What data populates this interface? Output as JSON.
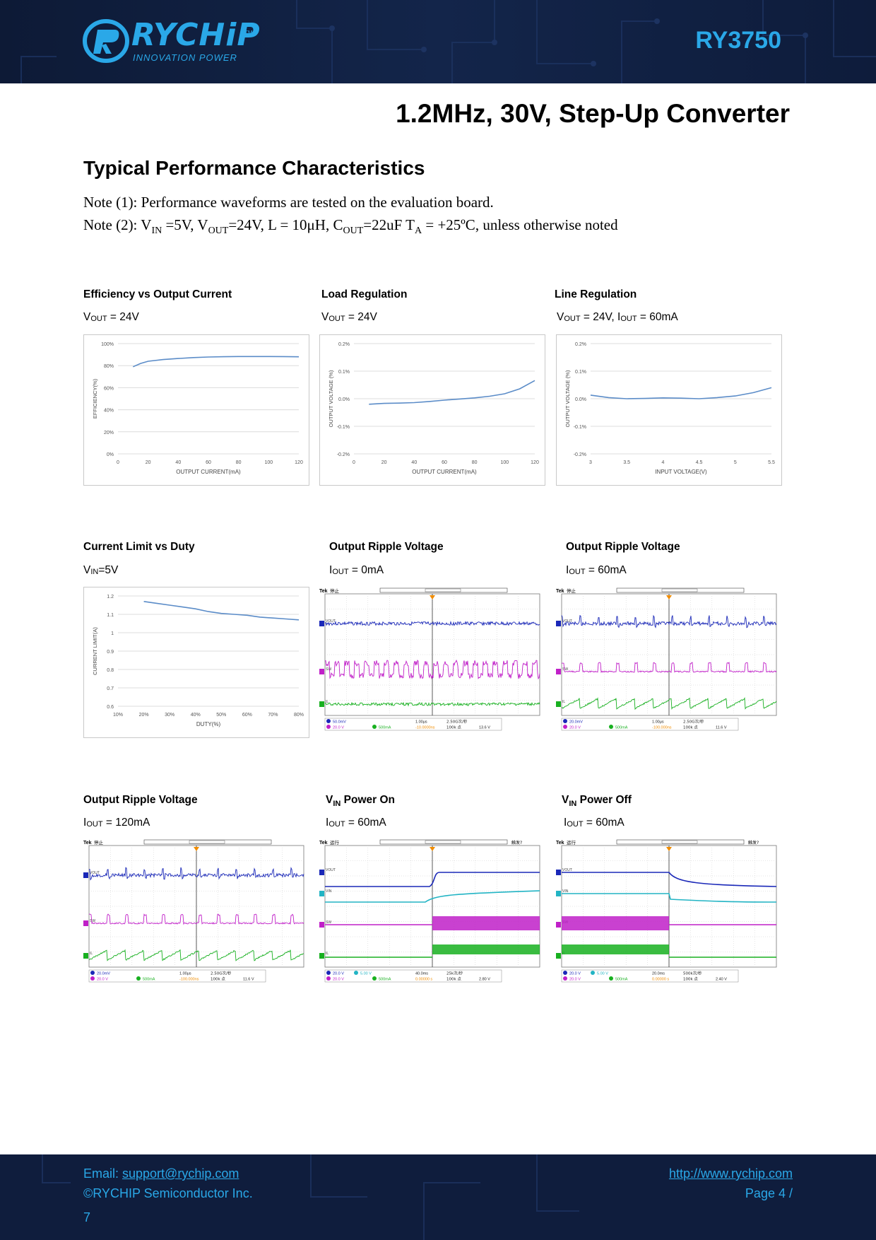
{
  "header": {
    "brand": "RYCHiP",
    "tagline": "INNOVATION POWER",
    "trademark": "TM",
    "part_number": "RY3750",
    "colors": {
      "accent": "#2aa8e8",
      "bar": "#0f1d3d"
    }
  },
  "doc_title": "1.2MHz, 30V, Step-Up Converter",
  "section_title": "Typical Performance Characteristics",
  "notes": {
    "note1": "Note (1): Performance waveforms are tested on the evaluation board.",
    "note2": {
      "prefix": "Note (2): V",
      "vin_sub": "IN",
      "a": " =5V, V",
      "vout_sub": "OUT",
      "b": "=24V, L = 10μH, C",
      "cout_sub": "OUT",
      "c": "=22uF T",
      "ta_sub": "A",
      "d": " = +25ºC, unless otherwise noted"
    }
  },
  "panels": [
    {
      "title": "Efficiency vs Output Current",
      "cond_main": "V",
      "cond_sub": "OUT",
      "cond_rest": " = 24V"
    },
    {
      "title": "Load Regulation",
      "cond_main": "V",
      "cond_sub": "OUT",
      "cond_rest": " = 24V"
    },
    {
      "title": "Line Regulation",
      "cond_main": "V",
      "cond_sub": "OUT",
      "cond_rest": " = 24V, I",
      "cond_sub2": "OUT",
      "cond_rest2": " = 60mA"
    },
    {
      "title": "Current Limit vs Duty",
      "cond_main": "V",
      "cond_sub": "IN",
      "cond_rest": "=5V"
    },
    {
      "title": "Output Ripple Voltage",
      "cond_main": "I",
      "cond_sub": "OUT",
      "cond_rest": " = 0mA"
    },
    {
      "title": "Output Ripple Voltage",
      "cond_main": "I",
      "cond_sub": "OUT",
      "cond_rest": " = 60mA"
    },
    {
      "title": "Output Ripple Voltage",
      "cond_main": "I",
      "cond_sub": "OUT",
      "cond_rest": " = 120mA"
    },
    {
      "title_main": "V",
      "title_sub": "IN",
      "title_rest": " Power On",
      "cond_main": "I",
      "cond_sub": "OUT",
      "cond_rest": " = 60mA"
    },
    {
      "title_main": "V",
      "title_sub": "IN",
      "title_rest": " Power Off",
      "cond_main": "I",
      "cond_sub": "OUT",
      "cond_rest": " = 60mA"
    }
  ],
  "chart_data": [
    {
      "type": "line",
      "title": "Efficiency vs Output Current",
      "xlabel": "OUTPUT CURRENT(mA)",
      "ylabel": "EFFICIENCY(%)",
      "xlim": [
        0,
        120
      ],
      "ylim": [
        0,
        100
      ],
      "xticks": [
        0,
        20,
        40,
        60,
        80,
        100,
        120
      ],
      "yticks": [
        0,
        20,
        40,
        60,
        80,
        100
      ],
      "ytick_labels": [
        "0%",
        "20%",
        "40%",
        "60%",
        "80%",
        "100%"
      ],
      "x": [
        10,
        15,
        20,
        30,
        40,
        50,
        60,
        70,
        80,
        90,
        100,
        110,
        120
      ],
      "y": [
        79,
        82,
        84,
        85.5,
        86.5,
        87.3,
        87.8,
        88.1,
        88.3,
        88.3,
        88.3,
        88.2,
        88
      ],
      "color": "#5b8cc8"
    },
    {
      "type": "line",
      "title": "Load Regulation",
      "xlabel": "OUTPUT CURRENT(mA)",
      "ylabel": "OUTPUT VOLTAGE (%)",
      "xlim": [
        0,
        120
      ],
      "ylim": [
        -0.2,
        0.2
      ],
      "xticks": [
        0,
        20,
        40,
        60,
        80,
        100,
        120
      ],
      "yticks": [
        -0.2,
        -0.1,
        0.0,
        0.1,
        0.2
      ],
      "ytick_labels": [
        "-0.2%",
        "-0.1%",
        "0.0%",
        "0.1%",
        "0.2%"
      ],
      "x": [
        10,
        20,
        30,
        40,
        50,
        60,
        70,
        80,
        90,
        100,
        110,
        120
      ],
      "y": [
        -0.02,
        -0.017,
        -0.016,
        -0.014,
        -0.01,
        -0.005,
        -0.001,
        0.003,
        0.009,
        0.018,
        0.036,
        0.066
      ],
      "color": "#5b8cc8"
    },
    {
      "type": "line",
      "title": "Line Regulation",
      "xlabel": "INPUT VOLTAGE(V)",
      "ylabel": "OUTPUT VOLTAGE (%)",
      "xlim": [
        3,
        5.5
      ],
      "ylim": [
        -0.2,
        0.2
      ],
      "xticks": [
        3,
        3.5,
        4,
        4.5,
        5,
        5.5
      ],
      "xtick_labels": [
        "3",
        "3.5",
        "4",
        "4.5",
        "5",
        "5.5"
      ],
      "yticks": [
        -0.2,
        -0.1,
        0.0,
        0.1,
        0.2
      ],
      "ytick_labels": [
        "-0.2%",
        "-0.1%",
        "0.0%",
        "0.1%",
        "0.2%"
      ],
      "x": [
        3,
        3.25,
        3.5,
        3.75,
        4,
        4.25,
        4.5,
        4.75,
        5,
        5.25,
        5.5
      ],
      "y": [
        0.013,
        0.004,
        0.0,
        0.001,
        0.003,
        0.002,
        0.0,
        0.004,
        0.01,
        0.022,
        0.04
      ],
      "color": "#5b8cc8"
    },
    {
      "type": "line",
      "title": "Current Limit vs Duty",
      "xlabel": "DUTY(%)",
      "ylabel": "CURRENT LIMIT(A)",
      "xlim": [
        10,
        80
      ],
      "ylim": [
        0.6,
        1.2
      ],
      "xticks": [
        10,
        20,
        30,
        40,
        50,
        60,
        70,
        80
      ],
      "xtick_labels": [
        "10%",
        "20%",
        "30%",
        "40%",
        "50%",
        "60%",
        "70%",
        "80%"
      ],
      "yticks": [
        0.6,
        0.7,
        0.8,
        0.9,
        1.0,
        1.1,
        1.2
      ],
      "ytick_labels": [
        "0.6",
        "0.7",
        "0.8",
        "0.9",
        "1",
        "1.1",
        "1.2"
      ],
      "x": [
        20,
        25,
        30,
        35,
        40,
        45,
        50,
        55,
        60,
        65,
        70,
        75,
        80
      ],
      "y": [
        1.17,
        1.16,
        1.15,
        1.14,
        1.13,
        1.115,
        1.105,
        1.1,
        1.095,
        1.085,
        1.08,
        1.075,
        1.07
      ],
      "color": "#5b8cc8"
    }
  ],
  "scopes": [
    {
      "mode": "ripple0",
      "tek": "Tek",
      "state": "停止",
      "ch_labels": [
        "VOUT",
        "SW",
        "IL"
      ],
      "readout": {
        "ch1": "50.0mV",
        "ch3": "20.0 V",
        "ch4": "500mA",
        "time": "1.00μs",
        "rate": "2.50G次/秒",
        "trig": "13.6 V",
        "pts": "100k 点",
        "trig_pos": "-10.0000ns"
      }
    },
    {
      "mode": "ripple60",
      "tek": "Tek",
      "state": "停止",
      "ch_labels": [
        "VOUT",
        "SW",
        "IL"
      ],
      "readout": {
        "ch1": "20.0mV",
        "ch3": "20.0 V",
        "ch4": "500mA",
        "time": "1.00μs",
        "rate": "2.50G次/秒",
        "trig": "11.6 V",
        "pts": "100k 点",
        "trig_pos": "-100.000ns"
      }
    },
    {
      "mode": "ripple120",
      "tek": "Tek",
      "state": "停止",
      "ch_labels": [
        "VOUT",
        "SW",
        "IL"
      ],
      "readout": {
        "ch1": "20.0mV",
        "ch3": "20.0 V",
        "ch4": "500mA",
        "time": "1.00μs",
        "rate": "2.50G次/秒",
        "trig": "11.6 V",
        "pts": "100k 点",
        "trig_pos": "-100.000ns"
      }
    },
    {
      "mode": "poweron",
      "tek": "Tek",
      "state": "运行",
      "state_right": "触发?",
      "ch_labels": [
        "VOUT",
        "VIN",
        "SW",
        "IL"
      ],
      "readout": {
        "ch1": "20.0 V",
        "ch2": "5.00 V",
        "ch3": "20.0 V",
        "ch4": "500mA",
        "time": "40.0ms",
        "rate": "25k次/秒",
        "trig": "2.80 V",
        "pts": "100k 点",
        "trig_pos": "0.00000 s"
      }
    },
    {
      "mode": "poweroff",
      "tek": "Tek",
      "state": "运行",
      "state_right": "触发?",
      "ch_labels": [
        "VOUT",
        "VIN",
        "SW",
        "IL"
      ],
      "readout": {
        "ch1": "20.0 V",
        "ch2": "5.00 V",
        "ch3": "20.0 V",
        "ch4": "500mA",
        "time": "20.0ms",
        "rate": "500k次/秒",
        "trig": "2.40 V",
        "pts": "100k 点",
        "trig_pos": "0.00000 s"
      }
    }
  ],
  "footer": {
    "email_label": "Email: ",
    "email": "support@rychip.com",
    "copyright": "©RYCHIP Semiconductor Inc.",
    "url": "http://www.rychip.com",
    "page_label": "Page ",
    "page_num": "4",
    "page_sep": " /",
    "page_total": "7"
  }
}
